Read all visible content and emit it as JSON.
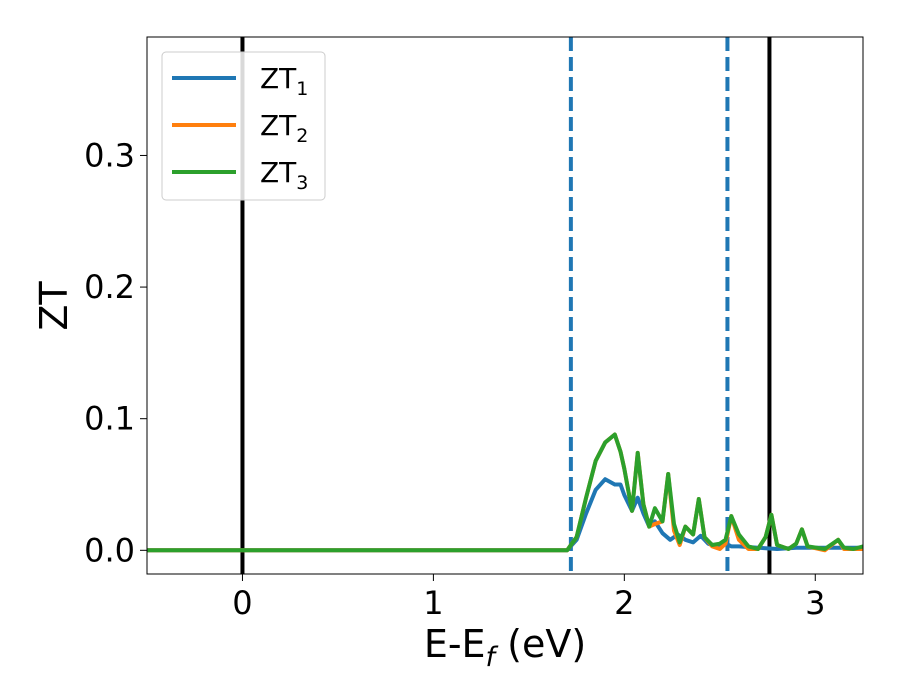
{
  "chart_data": {
    "type": "line",
    "xlabel_main": "E-E",
    "xlabel_sub": "f",
    "xlabel_tail": " (eV)",
    "ylabel": "ZT",
    "xlim": [
      -0.5,
      3.25
    ],
    "ylim": [
      -0.018,
      0.39
    ],
    "x_ticks": [
      0,
      1,
      2,
      3
    ],
    "x_tick_labels": [
      "0",
      "1",
      "2",
      "3"
    ],
    "y_ticks": [
      0.0,
      0.1,
      0.2,
      0.3
    ],
    "y_tick_labels": [
      "0.0",
      "0.1",
      "0.2",
      "0.3"
    ],
    "grid": false,
    "legend_position": "top-left",
    "vertical_lines": [
      {
        "x": 0.0,
        "style": "solid",
        "color": "#000000"
      },
      {
        "x": 2.76,
        "style": "solid",
        "color": "#000000"
      },
      {
        "x": 1.72,
        "style": "dashed",
        "color": "#1f77b4"
      },
      {
        "x": 2.54,
        "style": "dashed",
        "color": "#1f77b4"
      }
    ],
    "series": [
      {
        "name_main": "ZT",
        "name_sub": "1",
        "color": "#1f77b4",
        "x": [
          -0.5,
          1.6,
          1.7,
          1.75,
          1.8,
          1.85,
          1.9,
          1.95,
          1.98,
          2.0,
          2.04,
          2.07,
          2.1,
          2.13,
          2.16,
          2.2,
          2.24,
          2.28,
          2.32,
          2.36,
          2.4,
          2.44,
          2.48,
          2.52,
          2.56,
          2.6,
          2.7,
          2.8,
          2.9,
          3.0,
          3.1,
          3.2,
          3.25
        ],
        "y": [
          0.0,
          0.0,
          0.0,
          0.008,
          0.028,
          0.046,
          0.054,
          0.05,
          0.05,
          0.042,
          0.03,
          0.04,
          0.028,
          0.018,
          0.022,
          0.013,
          0.008,
          0.012,
          0.008,
          0.006,
          0.011,
          0.005,
          0.003,
          0.006,
          0.003,
          0.003,
          0.002,
          0.001,
          0.002,
          0.002,
          0.002,
          0.002,
          0.002
        ]
      },
      {
        "name_main": "ZT",
        "name_sub": "2",
        "color": "#ff7f0e",
        "x": [
          -0.5,
          1.6,
          1.7,
          1.75,
          1.8,
          1.85,
          1.9,
          1.95,
          1.98,
          2.0,
          2.04,
          2.07,
          2.1,
          2.13,
          2.16,
          2.2,
          2.23,
          2.26,
          2.29,
          2.32,
          2.36,
          2.39,
          2.42,
          2.46,
          2.5,
          2.53,
          2.56,
          2.6,
          2.65,
          2.7,
          2.74,
          2.77,
          2.8,
          2.86,
          2.9,
          2.93,
          2.96,
          3.05,
          3.12,
          3.15,
          3.2,
          3.25
        ],
        "y": [
          0.0,
          0.0,
          0.0,
          0.01,
          0.04,
          0.068,
          0.082,
          0.088,
          0.075,
          0.062,
          0.03,
          0.074,
          0.035,
          0.018,
          0.02,
          0.022,
          0.058,
          0.015,
          0.004,
          0.018,
          0.012,
          0.039,
          0.01,
          0.003,
          0.001,
          0.005,
          0.026,
          0.008,
          0.001,
          0.001,
          0.01,
          0.027,
          0.004,
          0.001,
          0.005,
          0.016,
          0.003,
          0.0,
          0.008,
          0.001,
          0.001,
          0.001
        ]
      },
      {
        "name_main": "ZT",
        "name_sub": "3",
        "color": "#2ca02c",
        "x": [
          -0.5,
          1.6,
          1.7,
          1.75,
          1.8,
          1.85,
          1.9,
          1.95,
          1.98,
          2.0,
          2.04,
          2.07,
          2.1,
          2.13,
          2.16,
          2.2,
          2.23,
          2.26,
          2.29,
          2.32,
          2.36,
          2.39,
          2.42,
          2.46,
          2.5,
          2.53,
          2.56,
          2.6,
          2.65,
          2.7,
          2.74,
          2.77,
          2.8,
          2.86,
          2.9,
          2.93,
          2.96,
          3.05,
          3.12,
          3.15,
          3.2,
          3.25
        ],
        "y": [
          0.0,
          0.0,
          0.0,
          0.01,
          0.04,
          0.068,
          0.082,
          0.088,
          0.075,
          0.062,
          0.03,
          0.074,
          0.035,
          0.018,
          0.032,
          0.022,
          0.058,
          0.02,
          0.006,
          0.018,
          0.012,
          0.039,
          0.01,
          0.004,
          0.005,
          0.008,
          0.026,
          0.012,
          0.003,
          0.001,
          0.01,
          0.027,
          0.004,
          0.001,
          0.005,
          0.016,
          0.003,
          0.001,
          0.008,
          0.002,
          0.001,
          0.003
        ]
      }
    ]
  }
}
